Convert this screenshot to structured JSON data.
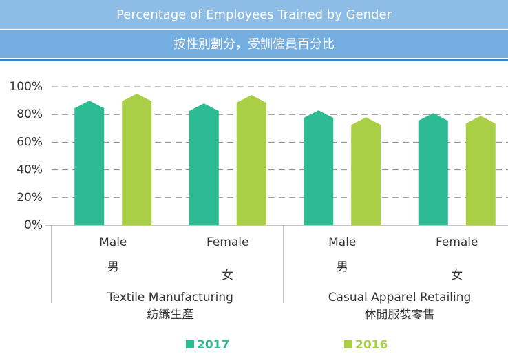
{
  "chart_data": {
    "type": "bar",
    "title": "Percentage of Employees Trained  by Gender",
    "subtitle": "按性別劃分，受訓僱員百分比",
    "categories": [
      "Male",
      "Female",
      "Male",
      "Female"
    ],
    "categories_zh": [
      "男",
      "女",
      "男",
      "女"
    ],
    "groups": [
      {
        "name": "Textile Manufacturing",
        "name_zh": "紡織生產"
      },
      {
        "name": "Casual Apparel Retailing",
        "name_zh": "休閒服裝零售"
      }
    ],
    "series": [
      {
        "name": "2017",
        "color": "#2dbb94",
        "values": [
          90,
          88,
          83,
          81
        ]
      },
      {
        "name": "2016",
        "color": "#a8cf45",
        "values": [
          95,
          94,
          78,
          79
        ]
      }
    ],
    "ylim": [
      0,
      100
    ],
    "yticks": [
      {
        "value": 0,
        "label": "0%"
      },
      {
        "value": 20,
        "label": "20%"
      },
      {
        "value": 40,
        "label": "40%"
      },
      {
        "value": 60,
        "label": "60%"
      },
      {
        "value": 80,
        "label": "80%"
      },
      {
        "value": 100,
        "label": "100%"
      }
    ],
    "grid": true
  }
}
